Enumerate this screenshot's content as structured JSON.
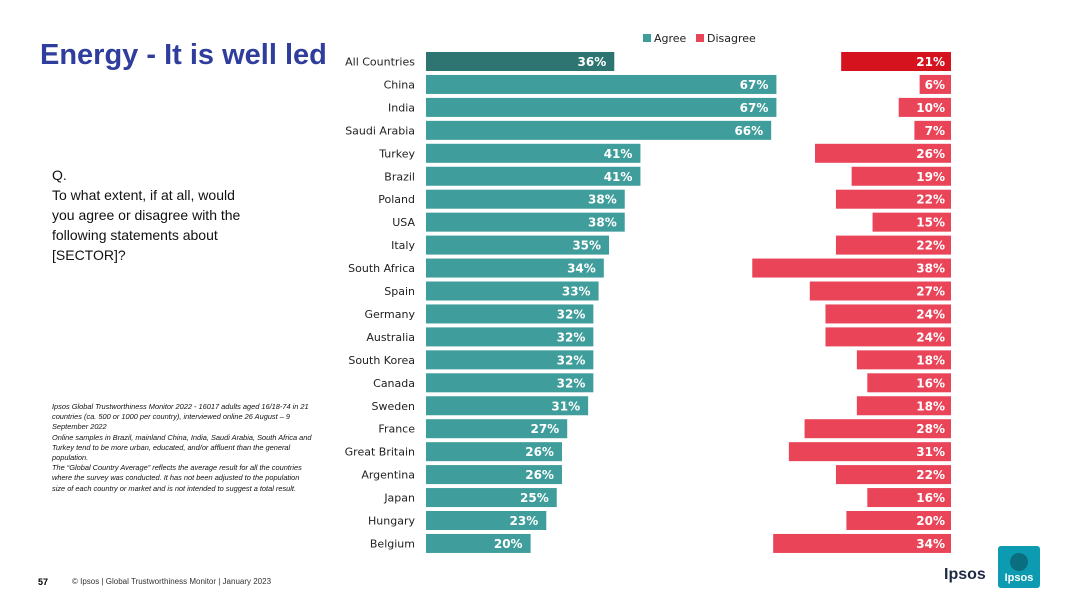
{
  "title": "Energy - It is well led",
  "question": {
    "prefix": "Q.",
    "text": "To what extent, if at all, would\nyou agree or disagree with the\nfollowing statements about\n[SECTOR]?"
  },
  "footnote": [
    "Ipsos Global Trustworthiness Monitor 2022 - 16017 adults aged 16/18-74 in 21 countries (ca. 500 or 1000 per country), interviewed online 26 August – 9 September 2022",
    "Online samples in Brazil, mainland China, India, Saudi Arabia, South Africa and Turkey tend to be more urban, educated, and/or affluent than the general population.",
    "The “Global Country Average” reflects the average result for all the countries where the survey was conducted. It has not been adjusted to the population size of each country or market and is not intended to suggest a total result."
  ],
  "footer": {
    "page_number": "57",
    "text": "© Ipsos | Global Trustworthiness Monitor | January 2023"
  },
  "logo": {
    "word": "Ipsos",
    "badge_text": "Ipsos"
  },
  "colors": {
    "agree": "#3f9d9b",
    "agree_total": "#2e7571",
    "disagree": "#ea4459",
    "disagree_total": "#d4131f",
    "title": "#2f3d9c"
  },
  "chart_data": {
    "type": "bar",
    "orientation": "horizontal",
    "legend": [
      "Agree",
      "Disagree"
    ],
    "legend_position": "top",
    "unit": "%",
    "categories": [
      "All Countries",
      "China",
      "India",
      "Saudi Arabia",
      "Turkey",
      "Brazil",
      "Poland",
      "USA",
      "Italy",
      "South Africa",
      "Spain",
      "Germany",
      "Australia",
      "South Korea",
      "Canada",
      "Sweden",
      "France",
      "Great Britain",
      "Argentina",
      "Japan",
      "Hungary",
      "Belgium"
    ],
    "series": [
      {
        "name": "Agree",
        "values": [
          36,
          67,
          67,
          66,
          41,
          41,
          38,
          38,
          35,
          34,
          33,
          32,
          32,
          32,
          32,
          31,
          27,
          26,
          26,
          25,
          23,
          20
        ]
      },
      {
        "name": "Disagree",
        "values": [
          21,
          6,
          10,
          7,
          26,
          19,
          22,
          15,
          22,
          38,
          27,
          24,
          24,
          18,
          16,
          18,
          28,
          31,
          22,
          16,
          20,
          34
        ]
      }
    ]
  }
}
